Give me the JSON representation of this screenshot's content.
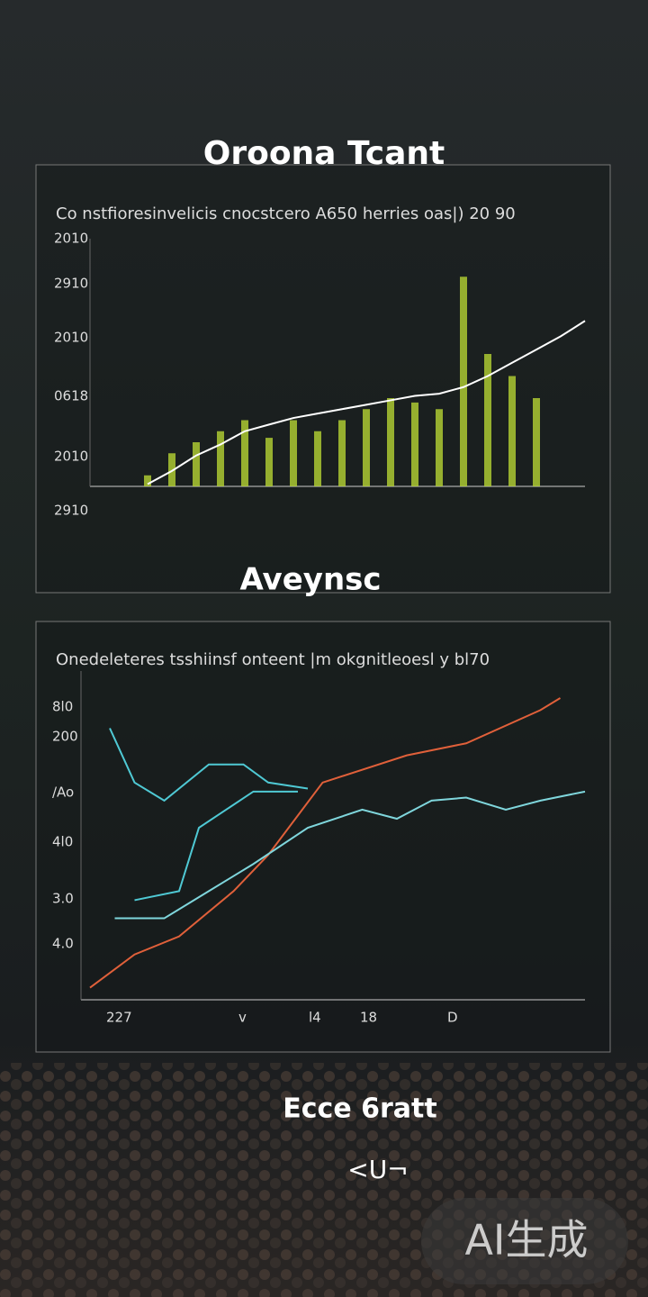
{
  "chart_data": [
    {
      "type": "bar-line",
      "title": "Oroona Tcant",
      "subtitle": "Co nstfioresinvelicis cnocstcero A650 herries oas|) 20 90",
      "y_axis_labels": [
        "2010",
        "2910",
        "2010",
        "0618",
        "2010",
        "2910"
      ],
      "xlim": [
        0,
        100
      ],
      "ylim": [
        0,
        100
      ],
      "x": [
        0,
        5,
        10,
        15,
        20,
        25,
        30,
        35,
        40,
        45,
        50,
        55,
        60,
        65,
        70,
        75,
        80,
        85,
        90,
        95,
        100
      ],
      "series": [
        {
          "type": "bar",
          "color": "#b5d333",
          "values": [
            0,
            0,
            5,
            15,
            20,
            25,
            30,
            22,
            30,
            25,
            30,
            35,
            40,
            38,
            35,
            95,
            60,
            50,
            40,
            0,
            0
          ]
        },
        {
          "type": "line",
          "color": "#ffffff",
          "values": [
            null,
            null,
            1,
            7,
            14,
            19,
            25,
            28,
            31,
            33,
            35,
            37,
            39,
            41,
            42,
            45,
            50,
            56,
            62,
            68,
            75
          ]
        }
      ]
    },
    {
      "type": "line",
      "title": "Aveynsc",
      "subtitle": "Onedeleteres tsshiinsf onteent |m okgnitleoesl y bl70",
      "y_axis_labels": [
        "8l0",
        "200",
        "/Ao",
        "4l0",
        "3.0",
        "4.0"
      ],
      "x_axis_labels": [
        "227",
        "v",
        "l4",
        "18",
        "D"
      ],
      "xlim": [
        0,
        100
      ],
      "ylim": [
        0,
        100
      ],
      "series": [
        {
          "color": "#e0603a",
          "x": [
            0,
            9,
            18,
            29,
            36,
            47,
            64,
            76,
            91,
            95
          ],
          "values": [
            4,
            15,
            21,
            36,
            48,
            72,
            81,
            85,
            96,
            100
          ]
        },
        {
          "color": "#4fc9d4",
          "x": [
            4,
            9,
            15,
            24,
            31,
            36,
            44
          ],
          "values": [
            90,
            72,
            66,
            78,
            78,
            72,
            70
          ]
        },
        {
          "color": "#4fc9d4",
          "x": [
            9,
            18,
            22,
            33,
            42
          ],
          "values": [
            33,
            36,
            57,
            69,
            69
          ]
        },
        {
          "color": "#7fd6dc",
          "x": [
            5,
            15,
            24,
            33,
            44,
            55,
            62,
            69,
            76,
            84,
            91,
            100
          ],
          "values": [
            27,
            27,
            36,
            45,
            57,
            63,
            60,
            66,
            67,
            63,
            66,
            69
          ]
        }
      ]
    }
  ],
  "footer": {
    "headline": "Ecce 6ratt",
    "mark": "<U¬",
    "watermark": "AI生成"
  }
}
